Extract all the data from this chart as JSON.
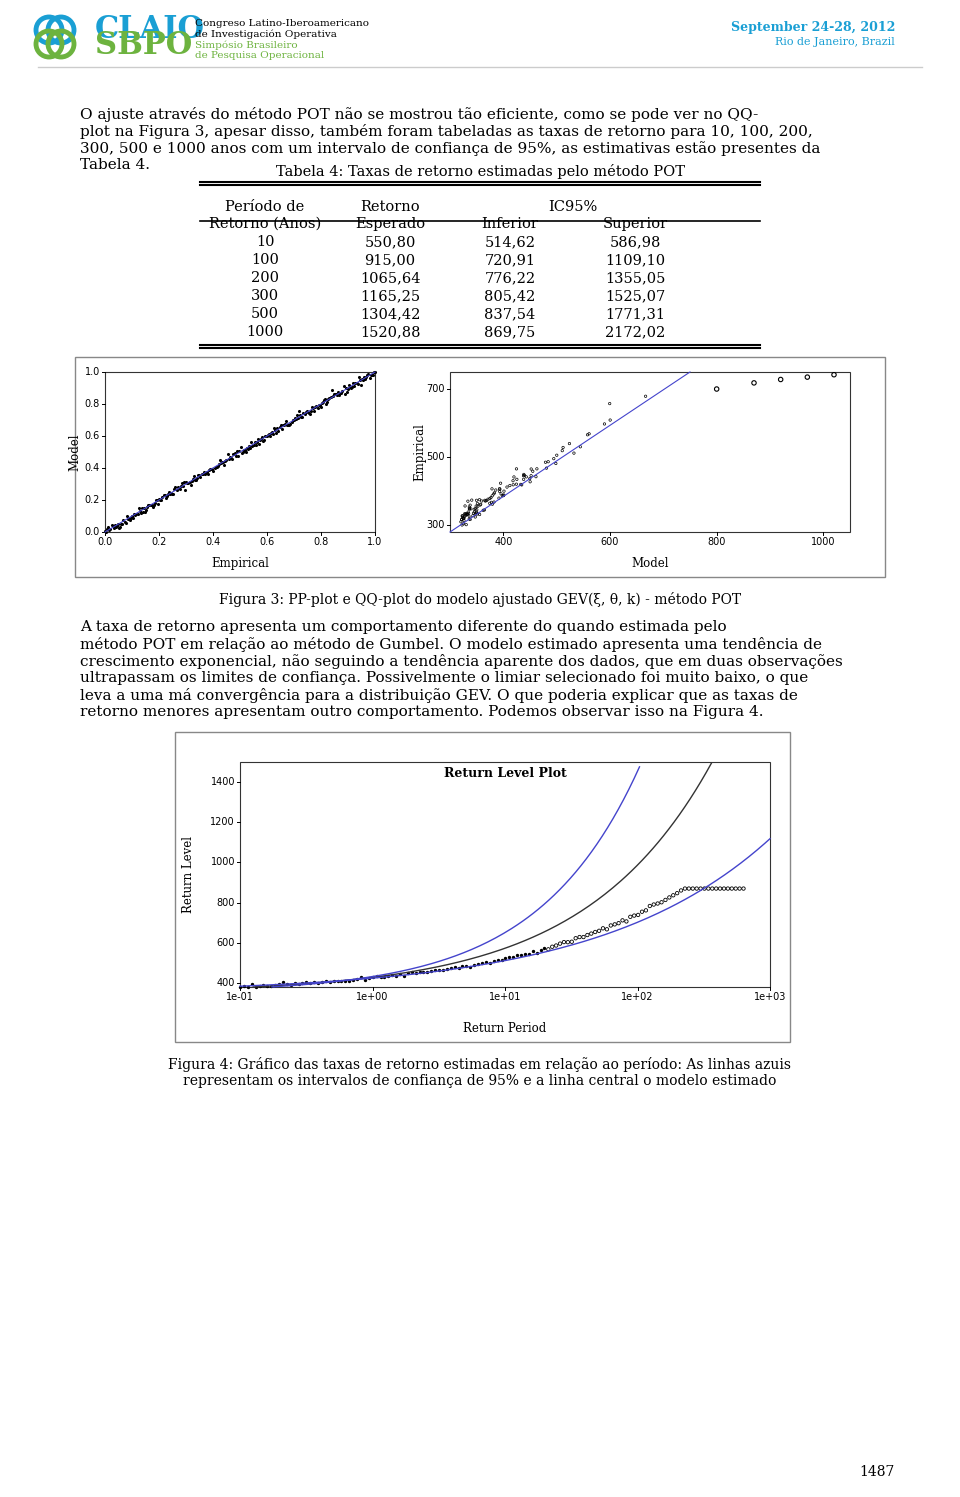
{
  "page_number": "1487",
  "background_color": "#ffffff",
  "text_color": "#000000",
  "header": {
    "logo_color_claio": "#1a9fd4",
    "logo_color_sbpo": "#6db33f",
    "date_text": "September 24-28, 2012",
    "location_text": "Rio de Janeiro, Brazil"
  },
  "body_paragraph1_lines": [
    "O ajuste através do método POT não se mostrou tão eficiente, como se pode ver no QQ-",
    "plot na Figura 3, apesar disso, também foram tabeladas as taxas de retorno para 10, 100, 200,",
    "300, 500 e 1000 anos com um intervalo de confiança de 95%, as estimativas estão presentes da",
    "Tabela 4."
  ],
  "table": {
    "title": "Tabela 4: Taxas de retorno estimadas pelo método POT",
    "rows": [
      [
        "10",
        "550,80",
        "514,62",
        "586,98"
      ],
      [
        "100",
        "915,00",
        "720,91",
        "1109,10"
      ],
      [
        "200",
        "1065,64",
        "776,22",
        "1355,05"
      ],
      [
        "300",
        "1165,25",
        "805,42",
        "1525,07"
      ],
      [
        "500",
        "1304,42",
        "837,54",
        "1771,31"
      ],
      [
        "1000",
        "1520,88",
        "869,75",
        "2172,02"
      ]
    ]
  },
  "figure3_caption": "Figura 3: PP-plot e QQ-plot do modelo ajustado GEV(ξ, θ, k) - método POT",
  "body_paragraph2_lines": [
    "A taxa de retorno apresenta um comportamento diferente do quando estimada pelo",
    "método POT em relação ao método de Gumbel. O modelo estimado apresenta uma tendência de",
    "crescimento exponencial, não seguindo a tendência aparente dos dados, que em duas observações",
    "ultrapassam os limites de confiança. Possivelmente o limiar selecionado foi muito baixo, o que",
    "leva a uma má convergência para a distribuição GEV. O que poderia explicar que as taxas de",
    "retorno menores apresentam outro comportamento. Podemos observar isso na Figura 4."
  ],
  "figure4_caption_lines": [
    "Figura 4: Gráfico das taxas de retorno estimadas em relação ao período: As linhas azuis",
    "representam os intervalos de confiança de 95% e a linha central o modelo estimado"
  ],
  "font_family": "serif",
  "body_fontsize": 11
}
